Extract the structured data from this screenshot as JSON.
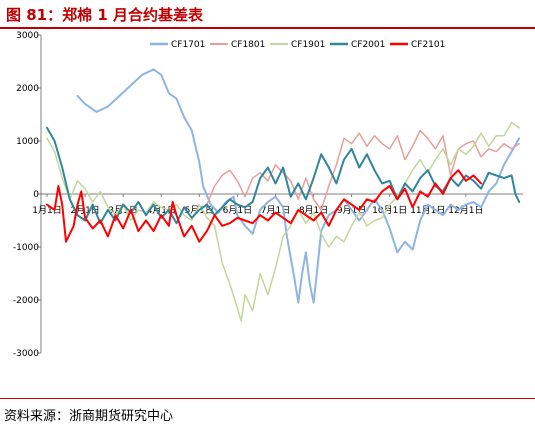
{
  "title": "图 81：郑棉 1 月合约基差表",
  "source": "资料来源：浙商期货研究中心",
  "chart_data": {
    "type": "line",
    "yticks": [
      3000,
      2000,
      1000,
      0,
      -1000,
      -2000,
      -3000
    ],
    "ylim": [
      -3000,
      3000
    ],
    "xticks": [
      "1月1日",
      "2月1日",
      "3月1日",
      "4月1日",
      "5月1日",
      "6月1日",
      "7月1日",
      "8月1日",
      "9月1日",
      "10月1日",
      "11月1日",
      "12月1日"
    ],
    "xlim": [
      1,
      13.5
    ],
    "grid": false,
    "legend_position": "top",
    "series": [
      {
        "name": "CF1701",
        "color": "#8eb4e3",
        "width": 2,
        "points": [
          [
            1.8,
            1850
          ],
          [
            2.0,
            1700
          ],
          [
            2.3,
            1550
          ],
          [
            2.6,
            1650
          ],
          [
            2.9,
            1850
          ],
          [
            3.2,
            2050
          ],
          [
            3.5,
            2250
          ],
          [
            3.8,
            2350
          ],
          [
            4.0,
            2250
          ],
          [
            4.2,
            1900
          ],
          [
            4.4,
            1800
          ],
          [
            4.6,
            1450
          ],
          [
            4.8,
            1200
          ],
          [
            5.0,
            600
          ],
          [
            5.1,
            150
          ],
          [
            5.3,
            -200
          ],
          [
            5.5,
            -350
          ],
          [
            5.7,
            -150
          ],
          [
            5.9,
            -50
          ],
          [
            6.0,
            -400
          ],
          [
            6.2,
            -600
          ],
          [
            6.4,
            -750
          ],
          [
            6.6,
            -300
          ],
          [
            6.8,
            -150
          ],
          [
            7.0,
            -50
          ],
          [
            7.2,
            -250
          ],
          [
            7.3,
            -800
          ],
          [
            7.4,
            -1200
          ],
          [
            7.5,
            -1600
          ],
          [
            7.6,
            -2050
          ],
          [
            7.7,
            -1500
          ],
          [
            7.8,
            -1100
          ],
          [
            7.9,
            -1700
          ],
          [
            8.0,
            -2050
          ],
          [
            8.1,
            -1400
          ],
          [
            8.2,
            -700
          ],
          [
            8.4,
            -400
          ],
          [
            8.6,
            -300
          ],
          [
            8.8,
            -100
          ],
          [
            9.0,
            -300
          ],
          [
            9.2,
            -500
          ],
          [
            9.4,
            -300
          ],
          [
            9.6,
            -100
          ],
          [
            9.8,
            -300
          ],
          [
            10.0,
            -650
          ],
          [
            10.2,
            -1100
          ],
          [
            10.4,
            -900
          ],
          [
            10.6,
            -1050
          ],
          [
            10.8,
            -500
          ],
          [
            11.0,
            -200
          ],
          [
            11.2,
            -300
          ],
          [
            11.4,
            -400
          ],
          [
            11.6,
            -200
          ],
          [
            11.8,
            -300
          ],
          [
            12.0,
            -200
          ],
          [
            12.2,
            -150
          ],
          [
            12.4,
            -250
          ],
          [
            12.6,
            50
          ],
          [
            12.8,
            200
          ],
          [
            13.0,
            550
          ],
          [
            13.2,
            800
          ],
          [
            13.4,
            1050
          ]
        ]
      },
      {
        "name": "CF1801",
        "color": "#e6a09b",
        "width": 1.5,
        "points": [
          [
            5.2,
            -200
          ],
          [
            5.4,
            150
          ],
          [
            5.6,
            350
          ],
          [
            5.8,
            450
          ],
          [
            6.0,
            250
          ],
          [
            6.2,
            -50
          ],
          [
            6.4,
            300
          ],
          [
            6.6,
            400
          ],
          [
            6.8,
            250
          ],
          [
            7.0,
            550
          ],
          [
            7.2,
            400
          ],
          [
            7.4,
            250
          ],
          [
            7.6,
            -100
          ],
          [
            7.8,
            300
          ],
          [
            8.0,
            -100
          ],
          [
            8.2,
            -300
          ],
          [
            8.4,
            150
          ],
          [
            8.6,
            550
          ],
          [
            8.8,
            1050
          ],
          [
            9.0,
            950
          ],
          [
            9.2,
            1150
          ],
          [
            9.4,
            900
          ],
          [
            9.6,
            1100
          ],
          [
            9.8,
            950
          ],
          [
            10.0,
            850
          ],
          [
            10.2,
            1100
          ],
          [
            10.4,
            650
          ],
          [
            10.6,
            900
          ],
          [
            10.8,
            1200
          ],
          [
            11.0,
            1050
          ],
          [
            11.2,
            850
          ],
          [
            11.4,
            1100
          ],
          [
            11.6,
            350
          ],
          [
            11.8,
            850
          ],
          [
            12.0,
            950
          ],
          [
            12.2,
            1000
          ],
          [
            12.4,
            700
          ],
          [
            12.6,
            850
          ],
          [
            12.8,
            800
          ],
          [
            13.0,
            950
          ],
          [
            13.2,
            850
          ],
          [
            13.4,
            950
          ]
        ]
      },
      {
        "name": "CF1901",
        "color": "#c3d69b",
        "width": 1.5,
        "points": [
          [
            1.0,
            1050
          ],
          [
            1.2,
            800
          ],
          [
            1.4,
            300
          ],
          [
            1.6,
            -100
          ],
          [
            1.8,
            250
          ],
          [
            2.0,
            100
          ],
          [
            2.2,
            -150
          ],
          [
            2.4,
            50
          ],
          [
            2.6,
            -250
          ],
          [
            2.8,
            -400
          ],
          [
            3.0,
            -200
          ],
          [
            3.2,
            -500
          ],
          [
            3.4,
            -300
          ],
          [
            3.6,
            -350
          ],
          [
            3.8,
            -150
          ],
          [
            4.0,
            -250
          ],
          [
            4.2,
            -300
          ],
          [
            4.4,
            -200
          ],
          [
            4.6,
            -400
          ],
          [
            4.8,
            -500
          ],
          [
            5.0,
            -200
          ],
          [
            5.2,
            -450
          ],
          [
            5.4,
            -600
          ],
          [
            5.6,
            -1300
          ],
          [
            5.8,
            -1700
          ],
          [
            6.0,
            -2150
          ],
          [
            6.1,
            -2400
          ],
          [
            6.2,
            -1900
          ],
          [
            6.4,
            -2200
          ],
          [
            6.6,
            -1500
          ],
          [
            6.8,
            -1900
          ],
          [
            7.0,
            -1400
          ],
          [
            7.2,
            -800
          ],
          [
            7.4,
            -600
          ],
          [
            7.6,
            -300
          ],
          [
            7.8,
            -550
          ],
          [
            8.0,
            -350
          ],
          [
            8.2,
            -750
          ],
          [
            8.4,
            -1000
          ],
          [
            8.6,
            -800
          ],
          [
            8.8,
            -900
          ],
          [
            9.0,
            -600
          ],
          [
            9.2,
            -350
          ],
          [
            9.4,
            -600
          ],
          [
            9.6,
            -500
          ],
          [
            9.8,
            -450
          ],
          [
            10.0,
            -200
          ],
          [
            10.2,
            -50
          ],
          [
            10.4,
            200
          ],
          [
            10.6,
            450
          ],
          [
            10.8,
            650
          ],
          [
            11.0,
            400
          ],
          [
            11.2,
            650
          ],
          [
            11.4,
            850
          ],
          [
            11.6,
            550
          ],
          [
            11.8,
            850
          ],
          [
            12.0,
            750
          ],
          [
            12.2,
            900
          ],
          [
            12.4,
            1150
          ],
          [
            12.6,
            900
          ],
          [
            12.8,
            1100
          ],
          [
            13.0,
            1100
          ],
          [
            13.2,
            1350
          ],
          [
            13.4,
            1250
          ]
        ]
      },
      {
        "name": "CF2001",
        "color": "#31859c",
        "width": 2,
        "points": [
          [
            1.0,
            1250
          ],
          [
            1.2,
            1000
          ],
          [
            1.4,
            500
          ],
          [
            1.6,
            -100
          ],
          [
            1.8,
            -400
          ],
          [
            2.0,
            -500
          ],
          [
            2.2,
            -200
          ],
          [
            2.4,
            -550
          ],
          [
            2.6,
            -300
          ],
          [
            2.8,
            -500
          ],
          [
            3.0,
            -200
          ],
          [
            3.2,
            -350
          ],
          [
            3.4,
            -150
          ],
          [
            3.6,
            -400
          ],
          [
            3.8,
            -200
          ],
          [
            4.0,
            -450
          ],
          [
            4.2,
            -300
          ],
          [
            4.4,
            -550
          ],
          [
            4.6,
            -250
          ],
          [
            4.8,
            -450
          ],
          [
            5.0,
            -300
          ],
          [
            5.2,
            -200
          ],
          [
            5.4,
            -400
          ],
          [
            5.6,
            -250
          ],
          [
            5.8,
            -100
          ],
          [
            6.0,
            -200
          ],
          [
            6.2,
            -250
          ],
          [
            6.4,
            -150
          ],
          [
            6.6,
            300
          ],
          [
            6.8,
            500
          ],
          [
            7.0,
            200
          ],
          [
            7.2,
            500
          ],
          [
            7.4,
            -50
          ],
          [
            7.6,
            200
          ],
          [
            7.8,
            -100
          ],
          [
            8.0,
            300
          ],
          [
            8.2,
            750
          ],
          [
            8.4,
            500
          ],
          [
            8.6,
            200
          ],
          [
            8.8,
            650
          ],
          [
            9.0,
            850
          ],
          [
            9.2,
            500
          ],
          [
            9.4,
            750
          ],
          [
            9.6,
            450
          ],
          [
            9.8,
            200
          ],
          [
            10.0,
            250
          ],
          [
            10.2,
            -100
          ],
          [
            10.4,
            200
          ],
          [
            10.6,
            50
          ],
          [
            10.8,
            300
          ],
          [
            11.0,
            450
          ],
          [
            11.2,
            150
          ],
          [
            11.4,
            50
          ],
          [
            11.6,
            300
          ],
          [
            11.8,
            150
          ],
          [
            12.0,
            350
          ],
          [
            12.2,
            250
          ],
          [
            12.4,
            100
          ],
          [
            12.6,
            400
          ],
          [
            12.8,
            350
          ],
          [
            13.0,
            300
          ],
          [
            13.2,
            350
          ],
          [
            13.3,
            0
          ],
          [
            13.4,
            -150
          ]
        ]
      },
      {
        "name": "CF2101",
        "color": "#ff0000",
        "width": 2,
        "points": [
          [
            1.0,
            -200
          ],
          [
            1.2,
            -300
          ],
          [
            1.3,
            150
          ],
          [
            1.4,
            -200
          ],
          [
            1.5,
            -900
          ],
          [
            1.7,
            -600
          ],
          [
            1.8,
            -200
          ],
          [
            1.9,
            50
          ],
          [
            2.0,
            -450
          ],
          [
            2.2,
            -650
          ],
          [
            2.4,
            -500
          ],
          [
            2.6,
            -800
          ],
          [
            2.8,
            -400
          ],
          [
            3.0,
            -650
          ],
          [
            3.2,
            -300
          ],
          [
            3.4,
            -700
          ],
          [
            3.6,
            -500
          ],
          [
            3.8,
            -700
          ],
          [
            4.0,
            -400
          ],
          [
            4.2,
            -600
          ],
          [
            4.3,
            -150
          ],
          [
            4.4,
            -400
          ],
          [
            4.6,
            -800
          ],
          [
            4.8,
            -600
          ],
          [
            5.0,
            -900
          ],
          [
            5.2,
            -700
          ],
          [
            5.4,
            -400
          ],
          [
            5.6,
            -600
          ],
          [
            5.8,
            -550
          ],
          [
            6.0,
            -450
          ],
          [
            6.2,
            -500
          ],
          [
            6.4,
            -550
          ],
          [
            6.6,
            -400
          ],
          [
            6.8,
            -500
          ],
          [
            7.0,
            -350
          ],
          [
            7.2,
            -450
          ],
          [
            7.4,
            -550
          ],
          [
            7.6,
            -300
          ],
          [
            7.8,
            -400
          ],
          [
            8.0,
            -500
          ],
          [
            8.2,
            -350
          ],
          [
            8.4,
            -600
          ],
          [
            8.6,
            -300
          ],
          [
            8.8,
            -100
          ],
          [
            9.0,
            -200
          ],
          [
            9.2,
            -300
          ],
          [
            9.4,
            -100
          ],
          [
            9.6,
            -150
          ],
          [
            9.8,
            50
          ],
          [
            10.0,
            150
          ],
          [
            10.2,
            -100
          ],
          [
            10.4,
            100
          ],
          [
            10.6,
            -250
          ],
          [
            10.8,
            50
          ],
          [
            11.0,
            -50
          ],
          [
            11.2,
            200
          ],
          [
            11.4,
            0
          ],
          [
            11.6,
            300
          ],
          [
            11.8,
            450
          ],
          [
            12.0,
            250
          ],
          [
            12.2,
            350
          ],
          [
            12.4,
            200
          ]
        ]
      }
    ]
  }
}
